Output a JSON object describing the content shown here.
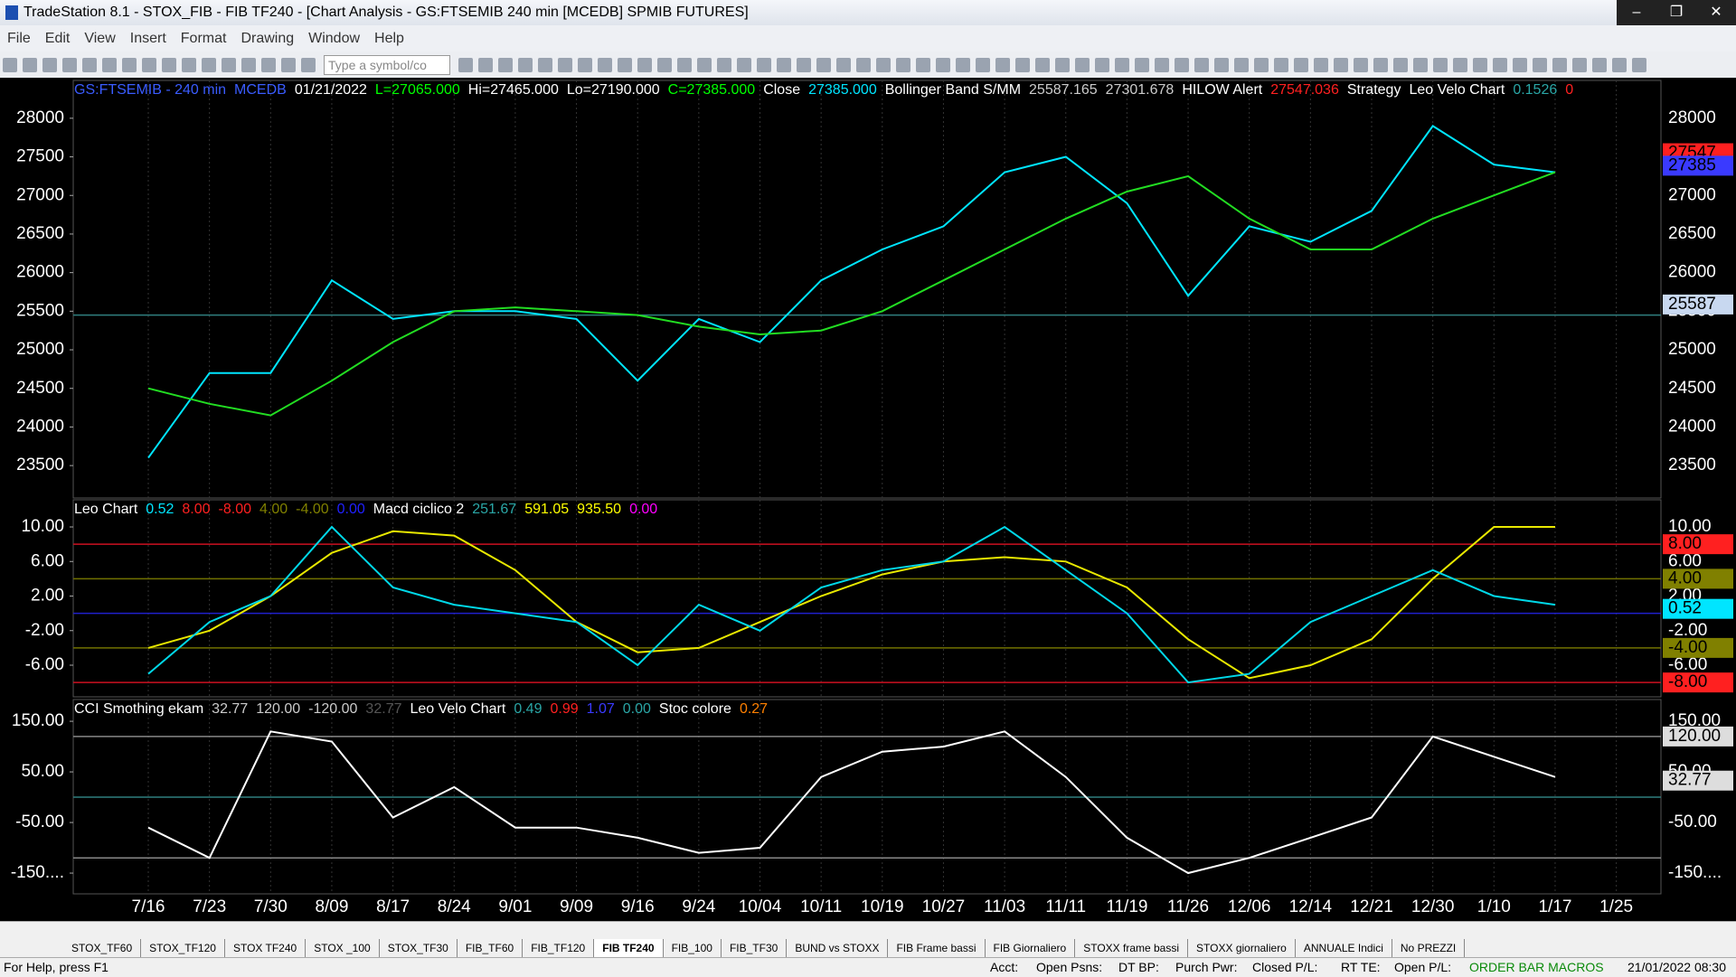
{
  "window": {
    "title": "TradeStation 8.1 - STOX_FIB - FIB TF240 - [Chart Analysis - GS:FTSEMIB  240 min  [MCEDB] SPMIB FUTURES]"
  },
  "menu": [
    "File",
    "Edit",
    "View",
    "Insert",
    "Format",
    "Drawing",
    "Window",
    "Help"
  ],
  "toolbar": {
    "symbol_box": "Type a symbol/co"
  },
  "chart_data": [
    {
      "type": "line",
      "header": [
        {
          "text": "GS:FTSEMIB - 240 min",
          "color": "#3a5cff"
        },
        {
          "text": "MCEDB",
          "color": "#3a5cff"
        },
        {
          "text": "01/21/2022",
          "color": "#ffffff"
        },
        {
          "text": "L=27065.000",
          "color": "#00ff00"
        },
        {
          "text": "Hi=27465.000",
          "color": "#ffffff"
        },
        {
          "text": "Lo=27190.000",
          "color": "#ffffff"
        },
        {
          "text": "C=27385.000",
          "color": "#00ff00"
        },
        {
          "text": "Close",
          "color": "#ffffff"
        },
        {
          "text": "27385.000",
          "color": "#00e5ff"
        },
        {
          "text": "Bollinger Band S/MM",
          "color": "#ffffff"
        },
        {
          "text": "25587.165",
          "color": "#cccccc"
        },
        {
          "text": "27301.678",
          "color": "#cccccc"
        },
        {
          "text": "HILOW Alert",
          "color": "#ffffff"
        },
        {
          "text": "27547.036",
          "color": "#ff2020"
        },
        {
          "text": "Strategy",
          "color": "#ffffff"
        },
        {
          "text": "Leo Velo Chart",
          "color": "#ffffff"
        },
        {
          "text": "0.1526",
          "color": "#2aa6a6"
        },
        {
          "text": "0",
          "color": "#ff2020"
        }
      ],
      "categories": [
        "7/16",
        "7/23",
        "7/30",
        "8/09",
        "8/17",
        "8/24",
        "9/01",
        "9/09",
        "9/16",
        "9/24",
        "10/04",
        "10/11",
        "10/19",
        "10/27",
        "11/03",
        "11/11",
        "11/19",
        "11/26",
        "12/06",
        "12/14",
        "12/21",
        "12/30",
        "1/10",
        "1/17",
        "1/25"
      ],
      "ylim": [
        23080,
        28490
      ],
      "yticks": [
        23500,
        24000,
        24500,
        25000,
        25500,
        26000,
        26500,
        27000,
        27500,
        28000
      ],
      "series": [
        {
          "color": "#00e5ff",
          "values": [
            23600,
            24700,
            24700,
            25900,
            25400,
            25500,
            25500,
            25400,
            24600,
            25400,
            25100,
            25900,
            26300,
            26600,
            27300,
            27500,
            26900,
            25700,
            26600,
            26400,
            26800,
            27900,
            27400,
            27300,
            null
          ]
        },
        {
          "color": "#22dd22",
          "values": [
            24500,
            24300,
            24150,
            24600,
            25100,
            25500,
            25550,
            25500,
            25450,
            25300,
            25200,
            25250,
            25500,
            25900,
            26300,
            26700,
            27050,
            27250,
            26700,
            26300,
            26300,
            26700,
            27000,
            27300,
            null
          ]
        }
      ],
      "levels": [
        {
          "value": 25450,
          "color": "#2f7f7f"
        }
      ],
      "markers": [
        {
          "value": 27547,
          "label": "27547",
          "color": "#ff2020"
        },
        {
          "value": 27385,
          "label": "27385",
          "color": "#3a3aff"
        },
        {
          "value": 25587,
          "label": "25587",
          "color": "#c8d8f0"
        }
      ]
    },
    {
      "type": "line",
      "header": [
        {
          "text": "Leo Chart",
          "color": "#ffffff"
        },
        {
          "text": "0.52",
          "color": "#00e5ff"
        },
        {
          "text": "8.00",
          "color": "#ff2020"
        },
        {
          "text": "-8.00",
          "color": "#ff2020"
        },
        {
          "text": "4.00",
          "color": "#808000"
        },
        {
          "text": "-4.00",
          "color": "#808000"
        },
        {
          "text": "0.00",
          "color": "#2020ff"
        },
        {
          "text": "Macd ciclico 2",
          "color": "#ffffff"
        },
        {
          "text": "251.67",
          "color": "#2aa6a6"
        },
        {
          "text": "591.05",
          "color": "#ffff00"
        },
        {
          "text": "935.50",
          "color": "#ffff00"
        },
        {
          "text": "0.00",
          "color": "#ff00ff"
        }
      ],
      "ylim": [
        -9.66,
        13.14
      ],
      "yticks": [
        {
          "value": -6,
          "label": "-6.00"
        },
        {
          "value": -2,
          "label": "-2.00"
        },
        {
          "value": 2,
          "label": "2.00"
        },
        {
          "value": 6,
          "label": "6.00"
        },
        {
          "value": 10,
          "label": "10.00"
        }
      ],
      "series": [
        {
          "color": "#e8e800",
          "values": [
            -4,
            -2,
            2,
            7,
            9.5,
            9,
            5,
            -1,
            -4.5,
            -4,
            -1,
            2,
            4.5,
            6,
            6.5,
            6,
            3,
            -3,
            -7.5,
            -6,
            -3,
            4,
            10,
            10,
            null
          ]
        },
        {
          "color": "#00d8e8",
          "values": [
            -7,
            -1,
            2,
            10,
            3,
            1,
            0,
            -1,
            -6,
            1,
            -2,
            3,
            5,
            6,
            10,
            5,
            0,
            -8,
            -7,
            -1,
            2,
            5,
            2,
            1,
            null
          ]
        }
      ],
      "levels": [
        {
          "value": 8,
          "color": "#cc1020"
        },
        {
          "value": 4,
          "color": "#707000"
        },
        {
          "value": 0,
          "color": "#2020cc"
        },
        {
          "value": -4,
          "color": "#707000"
        },
        {
          "value": -8,
          "color": "#cc1020"
        }
      ],
      "markers": [
        {
          "value": 8,
          "label": "8.00",
          "color": "#ff2020"
        },
        {
          "value": 4,
          "label": "4.00",
          "color": "#808000"
        },
        {
          "value": 0.52,
          "label": "0.52",
          "color": "#00e5ff"
        },
        {
          "value": -4,
          "label": "-4.00",
          "color": "#808000"
        },
        {
          "value": -8,
          "label": "-8.00",
          "color": "#ff2020"
        }
      ]
    },
    {
      "type": "line",
      "header": [
        {
          "text": "CCI Smothing ekam",
          "color": "#ffffff"
        },
        {
          "text": "32.77",
          "color": "#cccccc"
        },
        {
          "text": "120.00",
          "color": "#cccccc"
        },
        {
          "text": "-120.00",
          "color": "#cccccc"
        },
        {
          "text": "32.77",
          "color": "#555555"
        },
        {
          "text": "Leo Velo Chart",
          "color": "#ffffff"
        },
        {
          "text": "0.49",
          "color": "#2aa6a6"
        },
        {
          "text": "0.99",
          "color": "#ff2020"
        },
        {
          "text": "1.07",
          "color": "#3a3aff"
        },
        {
          "text": "0.00",
          "color": "#2aa6a6"
        },
        {
          "text": "Stoc colore",
          "color": "#ffffff"
        },
        {
          "text": "0.27",
          "color": "#ff8000"
        }
      ],
      "ylim": [
        -191,
        193
      ],
      "yticks": [
        {
          "value": -150,
          "label": "-150...."
        },
        {
          "value": -50,
          "label": "-50.00"
        },
        {
          "value": 50,
          "label": "50.00"
        },
        {
          "value": 150,
          "label": "150.00"
        }
      ],
      "series": [
        {
          "color": "#ffffff",
          "values": [
            -60,
            -120,
            130,
            110,
            -40,
            20,
            -60,
            -60,
            -80,
            -110,
            -100,
            40,
            90,
            100,
            130,
            40,
            -80,
            -150,
            -120,
            -80,
            -40,
            120,
            80,
            40,
            null
          ]
        }
      ],
      "levels": [
        {
          "value": 120,
          "color": "#888888"
        },
        {
          "value": 0,
          "color": "#2f7f7f"
        },
        {
          "value": -120,
          "color": "#888888"
        }
      ],
      "markers": [
        {
          "value": 120,
          "label": "120.00",
          "color": "#dddddd"
        },
        {
          "value": 32.77,
          "label": "32.77",
          "color": "#dddddd"
        }
      ]
    }
  ],
  "tabs": [
    "STOX_TF60",
    "STOX_TF120",
    "STOX TF240",
    "STOX _100",
    "STOX_TF30",
    "FIB_TF60",
    "FIB_TF120",
    "FIB TF240",
    "FIB_100",
    "FIB_TF30",
    "BUND vs STOXX",
    "FIB Frame bassi",
    "FIB Giornaliero",
    "STOXX frame bassi",
    "STOXX giornaliero",
    "ANNUALE Indici",
    "No PREZZI"
  ],
  "active_tab": 7,
  "status": [
    "For Help, press F1",
    "Acct:",
    "Open Psns:",
    "DT BP:",
    "Purch Pwr:",
    "Closed P/L:",
    "RT TE:",
    "Open P/L:",
    "ORDER BAR MACROS",
    "21/01/2022 08:30"
  ]
}
